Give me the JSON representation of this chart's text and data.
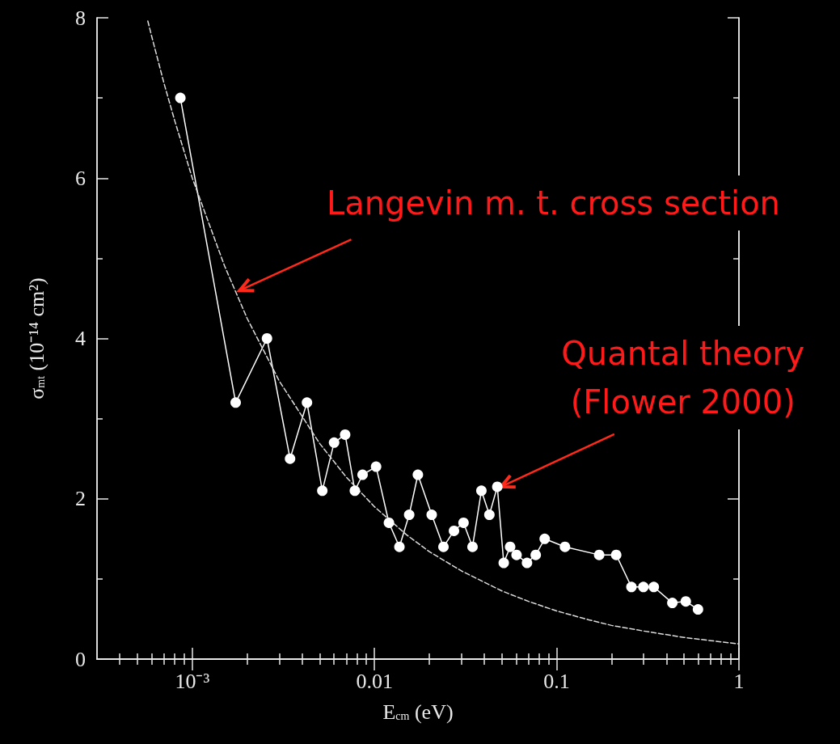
{
  "chart_data": {
    "type": "line",
    "xlabel": "E$_{cm}$ (eV)",
    "ylabel": "σ$_{mt}$ (10⁻¹⁴ cm²)",
    "log": "x",
    "xlim": [
      0.0003,
      1
    ],
    "ylim": [
      0,
      8
    ],
    "xticks": [
      {
        "value": 0.0004,
        "label": null
      },
      {
        "value": 0.0005,
        "label": null
      },
      {
        "value": 0.0006,
        "label": null
      },
      {
        "value": 0.0007,
        "label": null
      },
      {
        "value": 0.0008,
        "label": null
      },
      {
        "value": 0.0009,
        "label": null
      },
      {
        "value": 0.001,
        "label": "10⁻³"
      },
      {
        "value": 0.002,
        "label": null
      },
      {
        "value": 0.003,
        "label": null
      },
      {
        "value": 0.004,
        "label": null
      },
      {
        "value": 0.005,
        "label": null
      },
      {
        "value": 0.006,
        "label": null
      },
      {
        "value": 0.007,
        "label": null
      },
      {
        "value": 0.008,
        "label": null
      },
      {
        "value": 0.009,
        "label": null
      },
      0.01,
      {
        "value": 0.02,
        "label": null
      },
      {
        "value": 0.03,
        "label": null
      },
      {
        "value": 0.04,
        "label": null
      },
      {
        "value": 0.05,
        "label": null
      },
      {
        "value": 0.06,
        "label": null
      },
      {
        "value": 0.07,
        "label": null
      },
      {
        "value": 0.08,
        "label": null
      },
      {
        "value": 0.09,
        "label": null
      },
      0.1,
      {
        "value": 0.2,
        "label": null
      },
      {
        "value": 0.3,
        "label": null
      },
      {
        "value": 0.4,
        "label": null
      },
      {
        "value": 0.5,
        "label": null
      },
      {
        "value": 0.6,
        "label": null
      },
      {
        "value": 0.7,
        "label": null
      },
      {
        "value": 0.8,
        "label": null
      },
      {
        "value": 0.9,
        "label": null
      },
      1
    ],
    "yticks": [
      0,
      {
        "value": 1,
        "label": null
      },
      2,
      {
        "value": 3,
        "label": null
      },
      4,
      {
        "value": 5,
        "label": null
      },
      6,
      {
        "value": 7,
        "label": null
      },
      8
    ],
    "grid": false,
    "series": [
      {
        "color": "#ffffff",
        "marker": "circle",
        "line_style": "solid",
        "x": [
          0.00086,
          0.00173,
          0.00257,
          0.00344,
          0.00426,
          0.00517,
          0.006,
          0.0069,
          0.0078,
          0.0086,
          0.0102,
          0.012,
          0.0137,
          0.0155,
          0.0173,
          0.0206,
          0.0239,
          0.0273,
          0.0308,
          0.0345,
          0.0386,
          0.0427,
          0.0472,
          0.0512,
          0.0555,
          0.0602,
          0.0687,
          0.0767,
          0.0859,
          0.111,
          0.171,
          0.212,
          0.257,
          0.299,
          0.341,
          0.431,
          0.511,
          0.596
        ],
        "values": [
          7.0,
          3.2,
          4.0,
          2.5,
          3.2,
          2.1,
          2.7,
          2.8,
          2.1,
          2.3,
          2.4,
          1.7,
          1.4,
          1.8,
          2.3,
          1.8,
          1.4,
          1.6,
          1.7,
          1.4,
          2.1,
          1.8,
          2.15,
          1.2,
          1.4,
          1.3,
          1.2,
          1.3,
          1.5,
          1.4,
          1.3,
          1.3,
          0.9,
          0.9,
          0.9,
          0.7,
          0.72,
          0.62
        ]
      },
      {
        "color": "#dddddd",
        "marker": "none",
        "line_style": "dashed",
        "x": [
          0.00057,
          0.0006,
          0.0007,
          0.0008,
          0.001,
          0.0015,
          0.002,
          0.003,
          0.005,
          0.007,
          0.01,
          0.015,
          0.02,
          0.03,
          0.05,
          0.07,
          0.1,
          0.15,
          0.2,
          0.3,
          0.5,
          0.7,
          1
        ],
        "values": [
          7.96,
          7.76,
          7.18,
          6.72,
          6.0,
          4.91,
          4.25,
          3.47,
          2.69,
          2.27,
          1.9,
          1.55,
          1.34,
          1.1,
          0.85,
          0.72,
          0.6,
          0.49,
          0.42,
          0.35,
          0.27,
          0.23,
          0.19
        ]
      }
    ],
    "annotations": [
      {
        "text": "Langevin m. t. cross section",
        "x": 0.00182,
        "y": 4.6
      },
      {
        "text": "Quantal theory\n(Flower 2000)",
        "x": 0.0495,
        "y": 2.15
      }
    ]
  }
}
